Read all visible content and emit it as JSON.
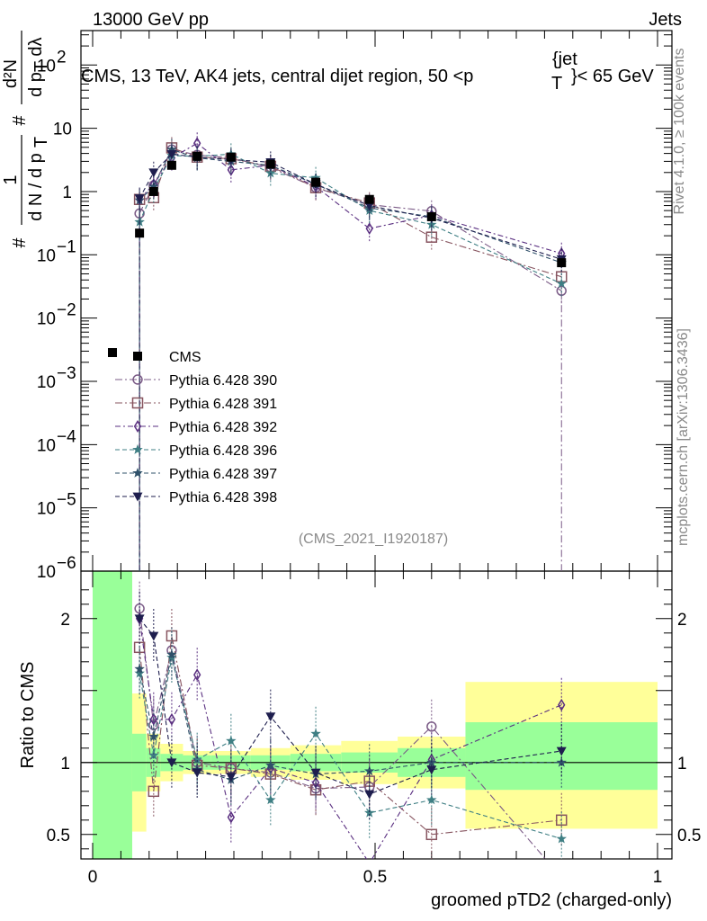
{
  "header": {
    "left": "13000 GeV pp",
    "right": "Jets"
  },
  "side_labels": {
    "rivet": "Rivet 4.1.0, ≥ 100k events",
    "mcplots": "mcplots.cern.ch [arXiv:1306.3436]"
  },
  "chart_data": {
    "type": "scatter",
    "title": "CMS, 13 TeV, AK4 jets, central dijet region, 50 <p_T^{jet}< 65 GeV",
    "title_text": "CMS, 13 TeV, AK4 jets, central dijet region, 50 <p",
    "title_sub": "T",
    "title_sup": "{jet",
    "title_tail": "}< 65 GeV",
    "ylabel": "1/dN/dp_T # d^2N/dp_T dλ",
    "ylabel_parts": {
      "hash1": "#",
      "frac_num": "1",
      "frac_den": "d N / d p",
      "frac_den_sub": "T",
      "hash2": "#",
      "num": "d²N",
      "den": "d p",
      "den_sub": "T",
      "den_tail": " dλ"
    },
    "xlabel": "groomed pTD2 (charged-only)",
    "watermark": "(CMS_2021_I1920187)",
    "ratio_ylabel": "Ratio to CMS",
    "xlim": [
      0,
      1
    ],
    "ylim": [
      1e-06,
      350
    ],
    "ratio_ylim": [
      0.33,
      2.33
    ],
    "x_ticks": [
      {
        "v": 0,
        "label": "0"
      },
      {
        "v": 0.5,
        "label": "0.5"
      },
      {
        "v": 1,
        "label": "1"
      }
    ],
    "y_ticks": [
      {
        "v": 1e-06,
        "base": "10",
        "exp": "−6"
      },
      {
        "v": 1e-05,
        "base": "10",
        "exp": "−5"
      },
      {
        "v": 0.0001,
        "base": "10",
        "exp": "−4"
      },
      {
        "v": 0.001,
        "base": "10",
        "exp": "−3"
      },
      {
        "v": 0.01,
        "base": "10",
        "exp": "−2"
      },
      {
        "v": 0.1,
        "base": "10",
        "exp": "−1"
      },
      {
        "v": 1,
        "base": "1",
        "exp": ""
      },
      {
        "v": 10,
        "base": "10",
        "exp": ""
      },
      {
        "v": 100,
        "base": "10",
        "exp": "2"
      }
    ],
    "ratio_ticks": [
      {
        "v": 0.5,
        "label": "0.5"
      },
      {
        "v": 1,
        "label": "1"
      },
      {
        "v": 2,
        "label": "2"
      }
    ],
    "bins": [
      {
        "lo": 0.0,
        "hi": 0.07
      },
      {
        "lo": 0.07,
        "hi": 0.095
      },
      {
        "lo": 0.095,
        "hi": 0.12
      },
      {
        "lo": 0.12,
        "hi": 0.16
      },
      {
        "lo": 0.16,
        "hi": 0.21
      },
      {
        "lo": 0.21,
        "hi": 0.28
      },
      {
        "lo": 0.28,
        "hi": 0.35
      },
      {
        "lo": 0.35,
        "hi": 0.44
      },
      {
        "lo": 0.44,
        "hi": 0.54
      },
      {
        "lo": 0.54,
        "hi": 0.66
      },
      {
        "lo": 0.66,
        "hi": 1.0
      }
    ],
    "band_stat": [
      [
        0.0,
        2.33
      ],
      [
        0.8,
        1.2
      ],
      [
        0.9,
        1.1
      ],
      [
        0.94,
        1.06
      ],
      [
        0.95,
        1.05
      ],
      [
        0.95,
        1.05
      ],
      [
        0.95,
        1.05
      ],
      [
        0.94,
        1.06
      ],
      [
        0.93,
        1.07
      ],
      [
        0.9,
        1.1
      ],
      [
        0.81,
        1.28
      ]
    ],
    "band_total": [
      [
        0.0,
        2.33
      ],
      [
        0.52,
        1.48
      ],
      [
        0.8,
        1.2
      ],
      [
        0.87,
        1.13
      ],
      [
        0.92,
        1.08
      ],
      [
        0.92,
        1.08
      ],
      [
        0.9,
        1.1
      ],
      [
        0.88,
        1.12
      ],
      [
        0.85,
        1.15
      ],
      [
        0.82,
        1.18
      ],
      [
        0.54,
        1.56
      ]
    ],
    "data": {
      "name": "CMS",
      "x": [
        0.083,
        0.108,
        0.14,
        0.185,
        0.245,
        0.315,
        0.395,
        0.49,
        0.6,
        0.83
      ],
      "y": [
        0.22,
        1.0,
        2.6,
        3.6,
        3.5,
        2.7,
        1.4,
        0.75,
        0.4,
        0.075
      ]
    },
    "series": [
      {
        "name": "Pythia 6.428 390",
        "color": "#7a5a86",
        "marker": "circle",
        "dash": "8,3,2,3",
        "y": [
          0.45,
          1.25,
          4.6,
          3.8,
          3.4,
          2.4,
          1.15,
          0.62,
          0.49,
          0.027
        ],
        "ratio": [
          2.07,
          1.26,
          1.78,
          1.0,
          0.96,
          0.93,
          0.82,
          0.83,
          1.25,
          0.2
        ]
      },
      {
        "name": "Pythia 6.428 391",
        "color": "#87545f",
        "marker": "square",
        "dash": "8,3,2,3",
        "y": [
          0.75,
          0.8,
          4.9,
          3.5,
          3.3,
          2.5,
          1.15,
          0.66,
          0.19,
          0.045
        ],
        "ratio": [
          1.8,
          0.8,
          1.88,
          0.98,
          0.96,
          0.92,
          0.81,
          0.87,
          0.5,
          0.6
        ]
      },
      {
        "name": "Pythia 6.428 392",
        "color": "#5a2f80",
        "marker": "diamond",
        "dash": "6,3,2,3",
        "y": [
          0.75,
          1.3,
          3.4,
          5.8,
          2.2,
          2.6,
          1.2,
          0.26,
          0.42,
          0.105
        ],
        "ratio": [
          2.0,
          1.3,
          1.3,
          1.61,
          0.62,
          0.96,
          0.86,
          0.3,
          1.02,
          1.4
        ]
      },
      {
        "name": "Pythia 6.428 396",
        "color": "#3f7f84",
        "marker": "star",
        "dash": "5,3",
        "y": [
          0.33,
          1.05,
          3.7,
          3.6,
          3.9,
          1.95,
          1.65,
          0.5,
          0.3,
          0.035
        ],
        "ratio": [
          1.62,
          1.05,
          1.73,
          1.02,
          1.15,
          0.74,
          1.2,
          0.65,
          0.74,
          0.47
        ]
      },
      {
        "name": "Pythia 6.428 397",
        "color": "#2f5069",
        "marker": "star",
        "dash": "5,3",
        "y": [
          0.73,
          1.2,
          4.6,
          3.4,
          3.0,
          2.6,
          1.3,
          0.55,
          0.4,
          0.075
        ],
        "ratio": [
          1.65,
          1.18,
          1.75,
          0.95,
          0.88,
          0.98,
          0.92,
          0.94,
          1.0,
          1.0
        ]
      },
      {
        "name": "Pythia 6.428 398",
        "color": "#1e1e4e",
        "marker": "triangle-down",
        "dash": "5,3",
        "y": [
          0.78,
          2.0,
          3.9,
          3.5,
          3.2,
          2.9,
          1.3,
          0.6,
          0.38,
          0.085
        ],
        "ratio": [
          2.0,
          1.88,
          1.0,
          0.93,
          0.9,
          1.32,
          0.93,
          0.78,
          0.95,
          1.08
        ]
      }
    ]
  }
}
